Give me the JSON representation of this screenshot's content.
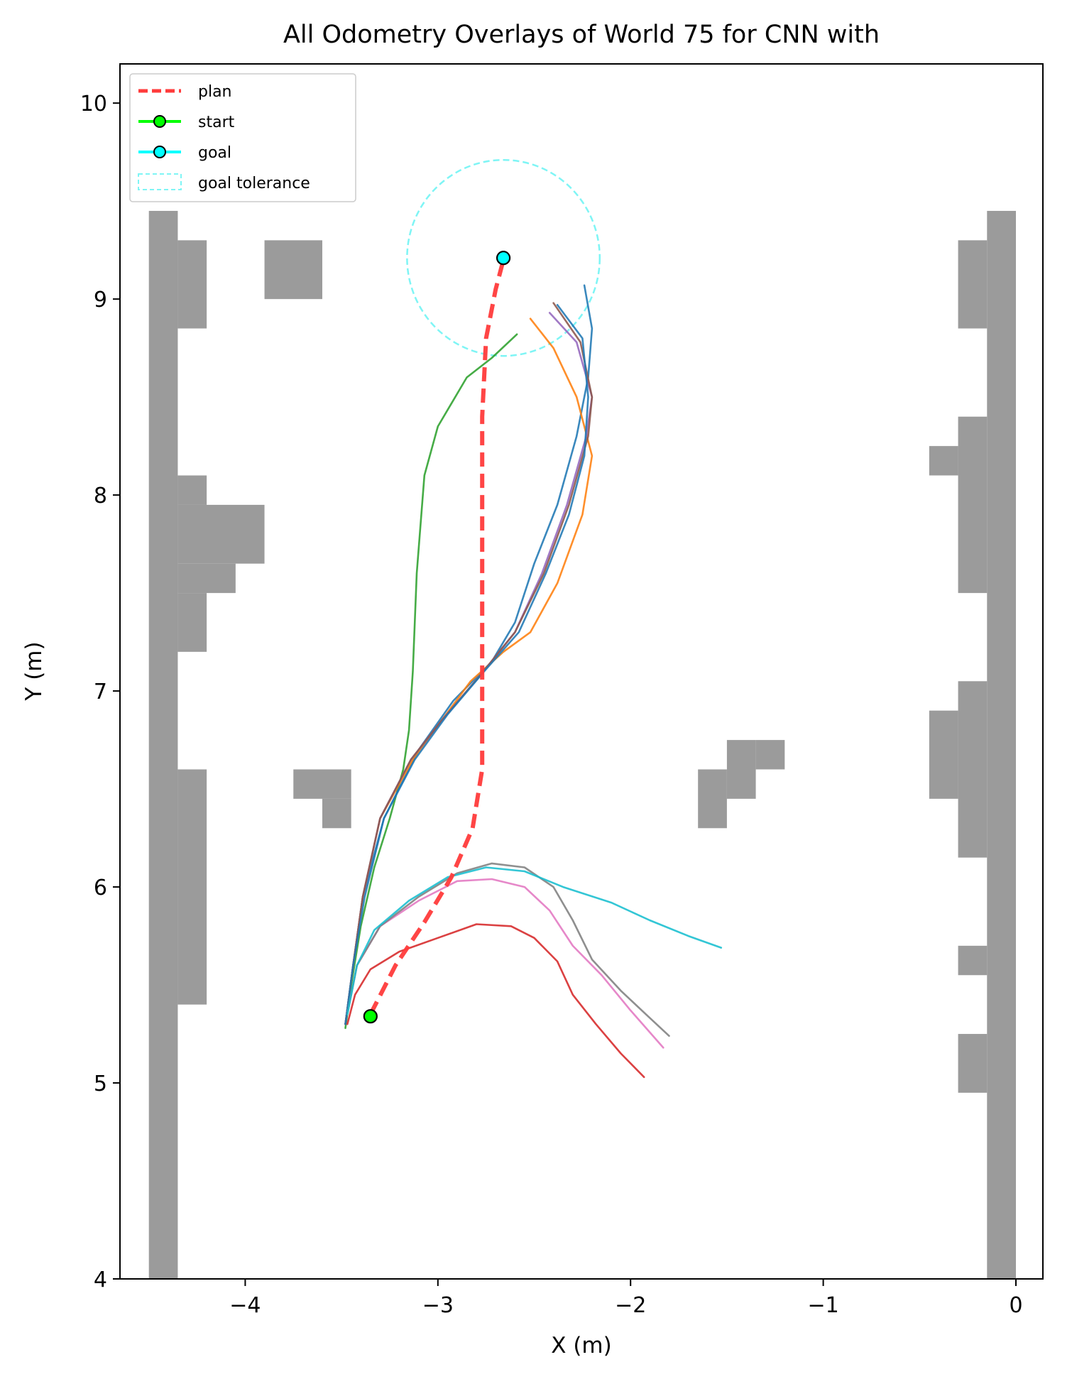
{
  "chart_data": {
    "type": "line",
    "title": "All Odometry Overlays of World 75 for CNN with",
    "xlabel": "X (m)",
    "ylabel": "Y (m)",
    "xlim": [
      -4.65,
      0.14
    ],
    "ylim": [
      4.0,
      10.2
    ],
    "xticks": [
      -4,
      -3,
      -2,
      -1,
      0
    ],
    "yticks": [
      4,
      5,
      6,
      7,
      8,
      9,
      10
    ],
    "xtick_labels": [
      "−4",
      "−3",
      "−2",
      "−1",
      "0"
    ],
    "ytick_labels": [
      "4",
      "5",
      "6",
      "7",
      "8",
      "9",
      "10"
    ],
    "grid": false,
    "legend": {
      "position": "top-left",
      "entries": [
        {
          "label": "plan",
          "style": "dashed",
          "color": "#ff3b3b"
        },
        {
          "label": "start",
          "style": "line-marker",
          "color": "#00ff00"
        },
        {
          "label": "goal",
          "style": "line-marker",
          "color": "#00ffff"
        },
        {
          "label": "goal tolerance",
          "style": "dashed-box",
          "color": "#7ff5f5"
        }
      ]
    },
    "obstacle_color": "#9b9b9b",
    "obstacles": [
      [
        -4.5,
        4.0,
        -4.35,
        9.45
      ],
      [
        -4.35,
        8.85,
        -4.2,
        9.3
      ],
      [
        -4.35,
        5.4,
        -4.2,
        6.6
      ],
      [
        -4.35,
        7.2,
        -4.2,
        7.5
      ],
      [
        -4.35,
        7.5,
        -4.05,
        7.65
      ],
      [
        -4.35,
        7.65,
        -3.9,
        7.95
      ],
      [
        -4.35,
        7.95,
        -4.2,
        8.1
      ],
      [
        -3.9,
        9.0,
        -3.6,
        9.3
      ],
      [
        -3.75,
        6.45,
        -3.45,
        6.6
      ],
      [
        -3.6,
        6.3,
        -3.45,
        6.45
      ],
      [
        -1.65,
        6.3,
        -1.5,
        6.6
      ],
      [
        -1.5,
        6.45,
        -1.35,
        6.75
      ],
      [
        -1.35,
        6.6,
        -1.2,
        6.75
      ],
      [
        -0.15,
        4.0,
        0.0,
        9.45
      ],
      [
        -0.3,
        8.85,
        -0.15,
        9.3
      ],
      [
        -0.3,
        7.5,
        -0.15,
        8.4
      ],
      [
        -0.45,
        8.1,
        -0.3,
        8.25
      ],
      [
        -0.3,
        6.15,
        -0.15,
        7.05
      ],
      [
        -0.45,
        6.45,
        -0.3,
        6.9
      ],
      [
        -0.3,
        5.55,
        -0.15,
        5.7
      ],
      [
        -0.3,
        4.95,
        -0.15,
        5.25
      ]
    ],
    "plan": {
      "name": "plan",
      "color": "#ff3b3b",
      "points": [
        [
          -3.35,
          5.35
        ],
        [
          -3.22,
          5.6
        ],
        [
          -3.07,
          5.82
        ],
        [
          -2.93,
          6.05
        ],
        [
          -2.82,
          6.3
        ],
        [
          -2.77,
          6.6
        ],
        [
          -2.77,
          7.0
        ],
        [
          -2.77,
          7.5
        ],
        [
          -2.77,
          8.0
        ],
        [
          -2.77,
          8.4
        ],
        [
          -2.75,
          8.8
        ],
        [
          -2.7,
          9.05
        ],
        [
          -2.66,
          9.2
        ]
      ]
    },
    "goal_tolerance": {
      "center": [
        -2.66,
        9.21
      ],
      "radius": 0.5,
      "color": "#7ff5f5"
    },
    "start": {
      "x": -3.35,
      "y": 5.34,
      "color": "#00ff00"
    },
    "goal": {
      "x": -2.66,
      "y": 9.21,
      "color": "#00ffff"
    },
    "series": [
      {
        "color": "#2ca02c",
        "points": [
          [
            -3.48,
            5.28
          ],
          [
            -3.45,
            5.5
          ],
          [
            -3.4,
            5.8
          ],
          [
            -3.33,
            6.1
          ],
          [
            -3.25,
            6.35
          ],
          [
            -3.18,
            6.6
          ],
          [
            -3.15,
            6.8
          ],
          [
            -3.13,
            7.1
          ],
          [
            -3.11,
            7.6
          ],
          [
            -3.07,
            8.1
          ],
          [
            -3.0,
            8.35
          ],
          [
            -2.85,
            8.6
          ],
          [
            -2.72,
            8.7
          ],
          [
            -2.59,
            8.82
          ]
        ]
      },
      {
        "color": "#1f77b4",
        "points": [
          [
            -3.48,
            5.3
          ],
          [
            -3.44,
            5.6
          ],
          [
            -3.39,
            5.95
          ],
          [
            -3.28,
            6.35
          ],
          [
            -3.1,
            6.7
          ],
          [
            -2.92,
            6.95
          ],
          [
            -2.72,
            7.15
          ],
          [
            -2.6,
            7.35
          ],
          [
            -2.5,
            7.65
          ],
          [
            -2.38,
            7.95
          ],
          [
            -2.28,
            8.3
          ],
          [
            -2.22,
            8.6
          ],
          [
            -2.2,
            8.85
          ],
          [
            -2.24,
            9.07
          ]
        ]
      },
      {
        "color": "#ff7f0e",
        "points": [
          [
            -3.48,
            5.3
          ],
          [
            -3.44,
            5.6
          ],
          [
            -3.39,
            5.95
          ],
          [
            -3.3,
            6.35
          ],
          [
            -3.13,
            6.65
          ],
          [
            -2.98,
            6.85
          ],
          [
            -2.83,
            7.05
          ],
          [
            -2.66,
            7.2
          ],
          [
            -2.52,
            7.3
          ],
          [
            -2.38,
            7.55
          ],
          [
            -2.25,
            7.9
          ],
          [
            -2.2,
            8.2
          ],
          [
            -2.28,
            8.5
          ],
          [
            -2.4,
            8.75
          ],
          [
            -2.52,
            8.9
          ]
        ]
      },
      {
        "color": "#9467bd",
        "points": [
          [
            -3.48,
            5.3
          ],
          [
            -3.44,
            5.6
          ],
          [
            -3.39,
            5.95
          ],
          [
            -3.3,
            6.35
          ],
          [
            -3.14,
            6.65
          ],
          [
            -2.98,
            6.85
          ],
          [
            -2.78,
            7.08
          ],
          [
            -2.6,
            7.3
          ],
          [
            -2.46,
            7.6
          ],
          [
            -2.33,
            7.95
          ],
          [
            -2.23,
            8.3
          ],
          [
            -2.2,
            8.5
          ],
          [
            -2.28,
            8.78
          ],
          [
            -2.42,
            8.93
          ]
        ]
      },
      {
        "color": "#8c564b",
        "points": [
          [
            -3.48,
            5.3
          ],
          [
            -3.44,
            5.6
          ],
          [
            -3.39,
            5.95
          ],
          [
            -3.3,
            6.35
          ],
          [
            -3.14,
            6.65
          ],
          [
            -2.98,
            6.85
          ],
          [
            -2.78,
            7.08
          ],
          [
            -2.6,
            7.3
          ],
          [
            -2.45,
            7.6
          ],
          [
            -2.32,
            7.95
          ],
          [
            -2.22,
            8.3
          ],
          [
            -2.2,
            8.5
          ],
          [
            -2.26,
            8.78
          ],
          [
            -2.4,
            8.98
          ]
        ]
      },
      {
        "color": "#1f77b4",
        "points": [
          [
            -3.48,
            5.3
          ],
          [
            -3.44,
            5.6
          ],
          [
            -3.38,
            5.95
          ],
          [
            -3.28,
            6.35
          ],
          [
            -3.12,
            6.65
          ],
          [
            -2.95,
            6.88
          ],
          [
            -2.76,
            7.1
          ],
          [
            -2.58,
            7.3
          ],
          [
            -2.44,
            7.6
          ],
          [
            -2.32,
            7.9
          ],
          [
            -2.24,
            8.2
          ],
          [
            -2.22,
            8.5
          ],
          [
            -2.25,
            8.8
          ],
          [
            -2.38,
            8.97
          ]
        ]
      },
      {
        "color": "#d62728",
        "points": [
          [
            -3.47,
            5.3
          ],
          [
            -3.43,
            5.45
          ],
          [
            -3.35,
            5.58
          ],
          [
            -3.2,
            5.67
          ],
          [
            -3.0,
            5.74
          ],
          [
            -2.8,
            5.81
          ],
          [
            -2.62,
            5.8
          ],
          [
            -2.5,
            5.74
          ],
          [
            -2.38,
            5.62
          ],
          [
            -2.3,
            5.45
          ],
          [
            -2.18,
            5.3
          ],
          [
            -2.05,
            5.15
          ],
          [
            -1.93,
            5.03
          ]
        ]
      },
      {
        "color": "#e377c2",
        "points": [
          [
            -3.47,
            5.35
          ],
          [
            -3.42,
            5.6
          ],
          [
            -3.3,
            5.8
          ],
          [
            -3.1,
            5.93
          ],
          [
            -2.9,
            6.03
          ],
          [
            -2.72,
            6.04
          ],
          [
            -2.55,
            6.0
          ],
          [
            -2.42,
            5.88
          ],
          [
            -2.3,
            5.7
          ],
          [
            -2.15,
            5.55
          ],
          [
            -2.0,
            5.37
          ],
          [
            -1.83,
            5.18
          ]
        ]
      },
      {
        "color": "#7f7f7f",
        "points": [
          [
            -3.47,
            5.35
          ],
          [
            -3.42,
            5.6
          ],
          [
            -3.3,
            5.8
          ],
          [
            -3.1,
            5.95
          ],
          [
            -2.9,
            6.07
          ],
          [
            -2.72,
            6.12
          ],
          [
            -2.55,
            6.1
          ],
          [
            -2.4,
            6.0
          ],
          [
            -2.3,
            5.83
          ],
          [
            -2.2,
            5.63
          ],
          [
            -2.05,
            5.47
          ],
          [
            -1.92,
            5.35
          ],
          [
            -1.8,
            5.24
          ]
        ]
      },
      {
        "color": "#17becf",
        "points": [
          [
            -3.47,
            5.35
          ],
          [
            -3.42,
            5.6
          ],
          [
            -3.33,
            5.78
          ],
          [
            -3.15,
            5.93
          ],
          [
            -2.95,
            6.05
          ],
          [
            -2.75,
            6.1
          ],
          [
            -2.55,
            6.08
          ],
          [
            -2.35,
            6.0
          ],
          [
            -2.1,
            5.92
          ],
          [
            -1.9,
            5.83
          ],
          [
            -1.7,
            5.75
          ],
          [
            -1.53,
            5.69
          ]
        ]
      }
    ]
  }
}
